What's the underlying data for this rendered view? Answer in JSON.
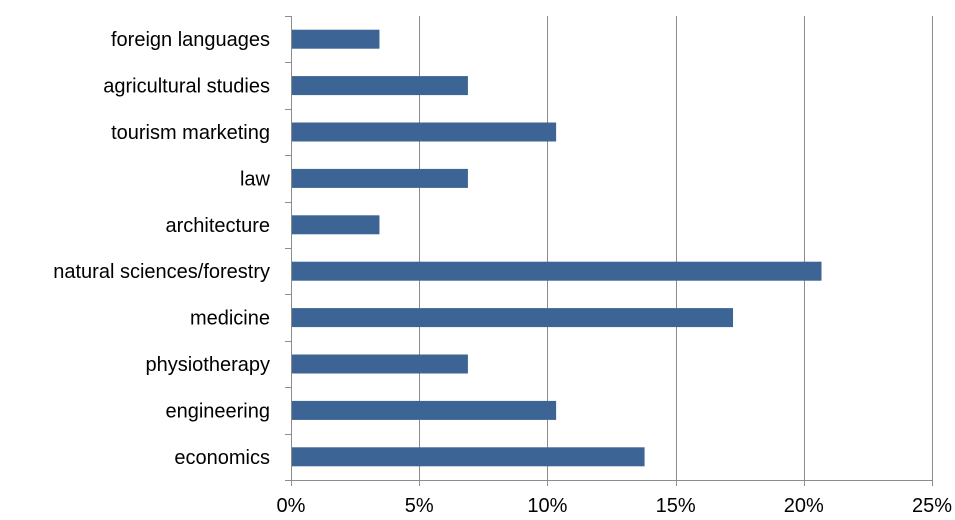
{
  "chart_data": {
    "type": "bar",
    "orientation": "horizontal",
    "categories": [
      "foreign languages",
      "agricultural studies",
      "tourism marketing",
      "law",
      "architecture",
      "natural sciences/forestry",
      "medicine",
      "physiotherapy",
      "engineering",
      "economics"
    ],
    "values": [
      3.45,
      6.9,
      10.34,
      6.9,
      3.45,
      20.69,
      17.24,
      6.9,
      10.34,
      13.79
    ],
    "xlim": [
      0,
      25
    ],
    "xticks": [
      0,
      5,
      10,
      15,
      20,
      25
    ],
    "xtick_labels": [
      "0%",
      "5%",
      "10%",
      "15%",
      "20%",
      "25%"
    ],
    "grid": "vertical",
    "bar_color": "#3C6494",
    "title": "",
    "xlabel": "",
    "ylabel": ""
  }
}
